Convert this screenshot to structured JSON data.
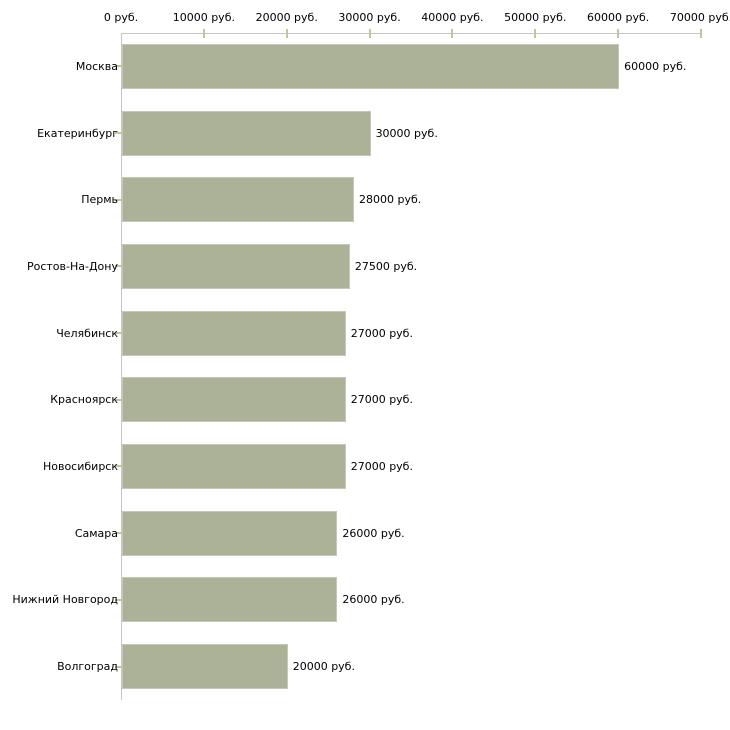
{
  "chart_data": {
    "type": "bar",
    "orientation": "horizontal",
    "categories": [
      "Москва",
      "Екатеринбург",
      "Пермь",
      "Ростов-На-Дону",
      "Челябинск",
      "Красноярск",
      "Новосибирск",
      "Самара",
      "Нижний Новгород",
      "Волгоград"
    ],
    "values": [
      60000,
      30000,
      28000,
      27500,
      27000,
      27000,
      27000,
      26000,
      26000,
      20000
    ],
    "bar_labels": [
      "60000 руб.",
      "30000 руб.",
      "28000 руб.",
      "27500 руб.",
      "27000 руб.",
      "27000 руб.",
      "27000 руб.",
      "26000 руб.",
      "26000 руб.",
      "20000 руб."
    ],
    "unit": "руб.",
    "x_axis": {
      "position": "top",
      "min": 0,
      "max": 70000,
      "tick_interval": 10000,
      "tick_values": [
        0,
        10000,
        20000,
        30000,
        40000,
        50000,
        60000,
        70000
      ],
      "tick_labels": [
        "0 руб.",
        "10000 руб.",
        "20000 руб.",
        "30000 руб.",
        "40000 руб.",
        "50000 руб.",
        "60000 руб.",
        "70000 руб."
      ]
    },
    "grid": "off",
    "legend": "none",
    "colors": {
      "bar_fill": "#acb298",
      "bar_border": "#c5c8b6",
      "axis_line": "#c6c6c6",
      "tick_mark": "#c2c49c",
      "text": "#000000",
      "background": "#ffffff"
    }
  }
}
